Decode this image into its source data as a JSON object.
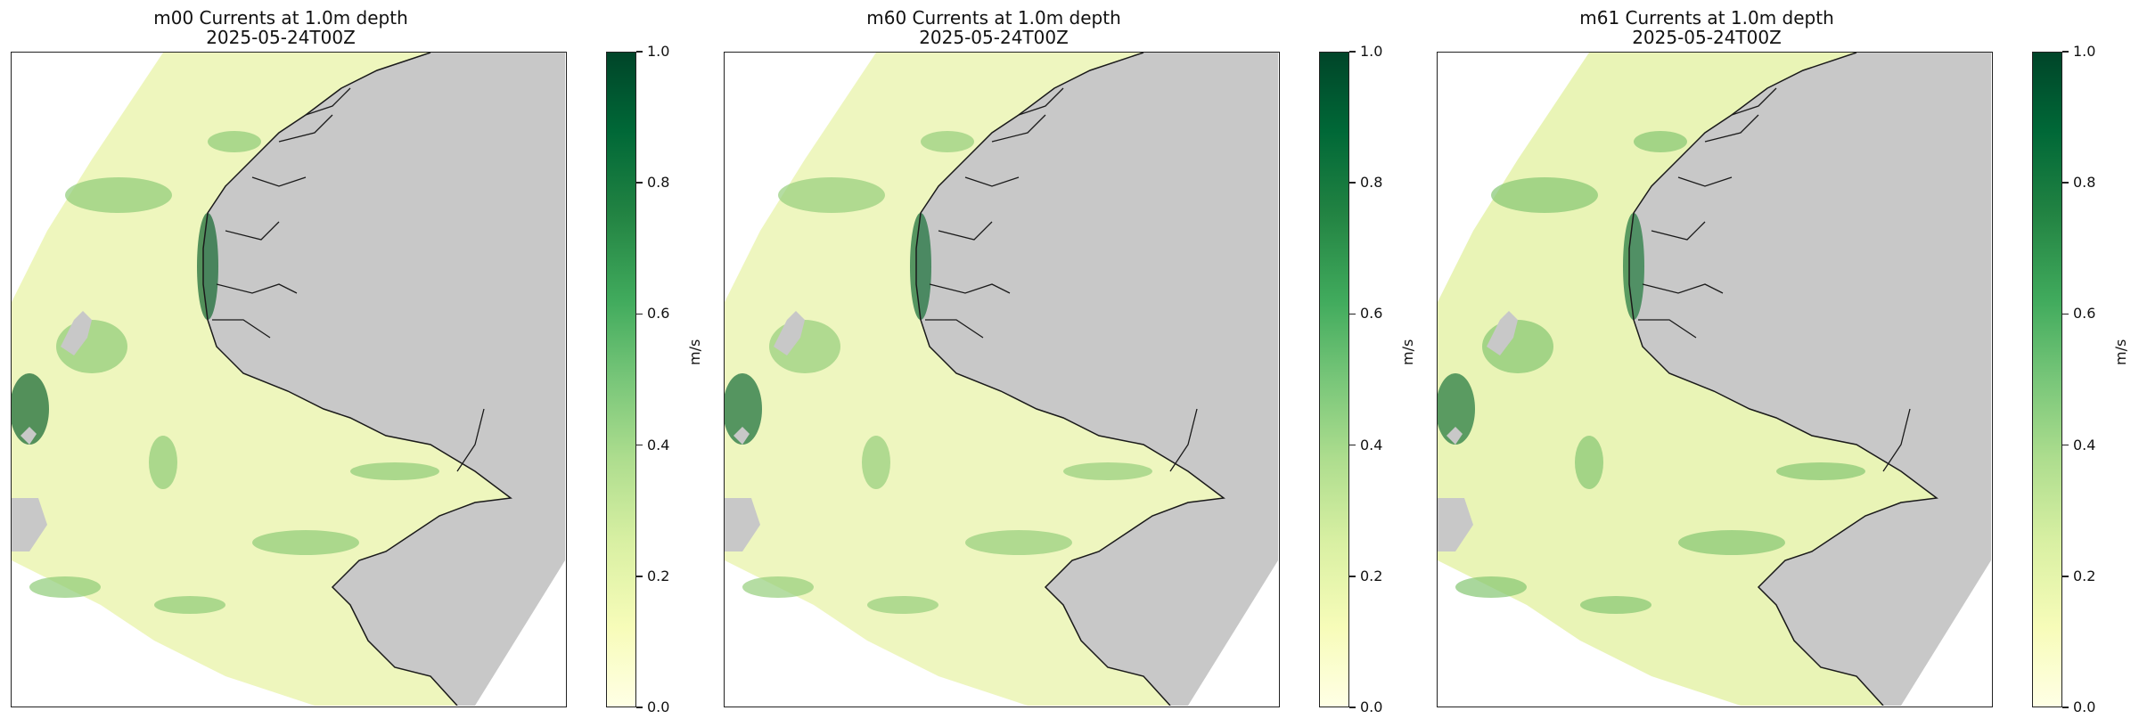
{
  "panels": [
    {
      "title": "m00 Currents at 1.0m depth",
      "subtitle": "2025-05-24T00Z"
    },
    {
      "title": "m60 Currents at 1.0m depth",
      "subtitle": "2025-05-24T00Z"
    },
    {
      "title": "m61 Currents at 1.0m depth",
      "subtitle": "2025-05-24T00Z"
    }
  ],
  "colorbar": {
    "unit": "m/s",
    "ticks": [
      "1.0",
      "0.8",
      "0.6",
      "0.4",
      "0.2",
      "0.0"
    ],
    "range": [
      0.0,
      1.0
    ],
    "colormap": "YlGn"
  },
  "colors": {
    "land": "#c8c8c8",
    "water_light": "#f0f7c2",
    "water_mid": "#b5db8e",
    "water_dark": "#2e8a4a",
    "coastline": "#1a1a1a"
  },
  "chart_data": {
    "type": "heatmap",
    "variable": "current speed",
    "unit": "m/s",
    "depth": "1.0m",
    "time": "2025-05-24T00Z",
    "models": [
      "m00",
      "m60",
      "m61"
    ],
    "value_range": [
      0.0,
      1.0
    ],
    "grid": false
  }
}
